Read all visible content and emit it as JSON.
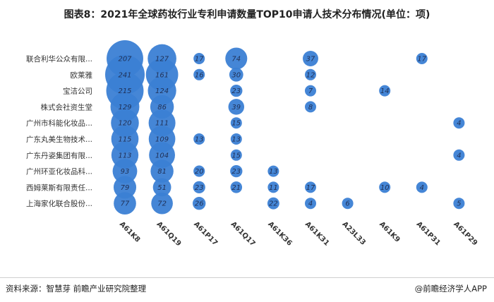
{
  "header": {
    "title": "图表8：2021年全球药妆行业专利申请数量TOP10申请人技术分布情况(单位：项)"
  },
  "footer": {
    "source": "资料来源：智慧芽 前瞻产业研究院整理",
    "brand": "@前瞻经济学人APP"
  },
  "chart_data": {
    "type": "bubble",
    "title": "图表8：2021年全球药妆行业专利申请数量TOP10申请人技术分布情况(单位：项)",
    "unit": "项",
    "x_categories": [
      "A61K8",
      "A61Q19",
      "A61P17",
      "A61Q17",
      "A61K36",
      "A61K31",
      "A23L33",
      "A61K9",
      "A61P31",
      "A61P29"
    ],
    "y_categories": [
      "联合利华公众有限...",
      "欧莱雅",
      "宝洁公司",
      "株式会社资生堂",
      "广州市科能化妆品...",
      "广东丸美生物技术...",
      "广东丹姿集团有限...",
      "广州环亚化妆品科...",
      "西姆莱斯有限责任...",
      "上海家化联合股份..."
    ],
    "bubble_color": "#3b7fd4",
    "points": [
      {
        "applicant": "联合利华公众有限...",
        "tech": "A61K8",
        "value": 207
      },
      {
        "applicant": "联合利华公众有限...",
        "tech": "A61Q19",
        "value": 127
      },
      {
        "applicant": "联合利华公众有限...",
        "tech": "A61P17",
        "value": 17
      },
      {
        "applicant": "联合利华公众有限...",
        "tech": "A61Q17",
        "value": 74
      },
      {
        "applicant": "联合利华公众有限...",
        "tech": "A61K31",
        "value": 37
      },
      {
        "applicant": "联合利华公众有限...",
        "tech": "A61P31",
        "value": 17
      },
      {
        "applicant": "欧莱雅",
        "tech": "A61K8",
        "value": 241
      },
      {
        "applicant": "欧莱雅",
        "tech": "A61Q19",
        "value": 161
      },
      {
        "applicant": "欧莱雅",
        "tech": "A61P17",
        "value": 16
      },
      {
        "applicant": "欧莱雅",
        "tech": "A61Q17",
        "value": 30
      },
      {
        "applicant": "欧莱雅",
        "tech": "A61K31",
        "value": 12
      },
      {
        "applicant": "宝洁公司",
        "tech": "A61K8",
        "value": 215
      },
      {
        "applicant": "宝洁公司",
        "tech": "A61Q19",
        "value": 124
      },
      {
        "applicant": "宝洁公司",
        "tech": "A61Q17",
        "value": 23
      },
      {
        "applicant": "宝洁公司",
        "tech": "A61K31",
        "value": 7
      },
      {
        "applicant": "宝洁公司",
        "tech": "A61K9",
        "value": 14
      },
      {
        "applicant": "株式会社资生堂",
        "tech": "A61K8",
        "value": 129
      },
      {
        "applicant": "株式会社资生堂",
        "tech": "A61Q19",
        "value": 86
      },
      {
        "applicant": "株式会社资生堂",
        "tech": "A61Q17",
        "value": 39
      },
      {
        "applicant": "株式会社资生堂",
        "tech": "A61K31",
        "value": 8
      },
      {
        "applicant": "广州市科能化妆品...",
        "tech": "A61K8",
        "value": 120
      },
      {
        "applicant": "广州市科能化妆品...",
        "tech": "A61Q19",
        "value": 111
      },
      {
        "applicant": "广州市科能化妆品...",
        "tech": "A61Q17",
        "value": 15
      },
      {
        "applicant": "广州市科能化妆品...",
        "tech": "A61P29",
        "value": 4
      },
      {
        "applicant": "广东丸美生物技术...",
        "tech": "A61K8",
        "value": 115
      },
      {
        "applicant": "广东丸美生物技术...",
        "tech": "A61Q19",
        "value": 109
      },
      {
        "applicant": "广东丸美生物技术...",
        "tech": "A61P17",
        "value": 13
      },
      {
        "applicant": "广东丸美生物技术...",
        "tech": "A61Q17",
        "value": 13
      },
      {
        "applicant": "广东丹姿集团有限...",
        "tech": "A61K8",
        "value": 113
      },
      {
        "applicant": "广东丹姿集团有限...",
        "tech": "A61Q19",
        "value": 104
      },
      {
        "applicant": "广东丹姿集团有限...",
        "tech": "A61Q17",
        "value": 15
      },
      {
        "applicant": "广东丹姿集团有限...",
        "tech": "A61P29",
        "value": 4
      },
      {
        "applicant": "广州环亚化妆品科...",
        "tech": "A61K8",
        "value": 93
      },
      {
        "applicant": "广州环亚化妆品科...",
        "tech": "A61Q19",
        "value": 81
      },
      {
        "applicant": "广州环亚化妆品科...",
        "tech": "A61P17",
        "value": 20
      },
      {
        "applicant": "广州环亚化妆品科...",
        "tech": "A61Q17",
        "value": 23
      },
      {
        "applicant": "广州环亚化妆品科...",
        "tech": "A61K36",
        "value": 13
      },
      {
        "applicant": "西姆莱斯有限责任...",
        "tech": "A61K8",
        "value": 79
      },
      {
        "applicant": "西姆莱斯有限责任...",
        "tech": "A61Q19",
        "value": 51
      },
      {
        "applicant": "西姆莱斯有限责任...",
        "tech": "A61P17",
        "value": 23
      },
      {
        "applicant": "西姆莱斯有限责任...",
        "tech": "A61Q17",
        "value": 21
      },
      {
        "applicant": "西姆莱斯有限责任...",
        "tech": "A61K36",
        "value": 11
      },
      {
        "applicant": "西姆莱斯有限责任...",
        "tech": "A61K31",
        "value": 17
      },
      {
        "applicant": "西姆莱斯有限责任...",
        "tech": "A61K9",
        "value": 10
      },
      {
        "applicant": "西姆莱斯有限责任...",
        "tech": "A61P31",
        "value": 4
      },
      {
        "applicant": "上海家化联合股份...",
        "tech": "A61K8",
        "value": 77
      },
      {
        "applicant": "上海家化联合股份...",
        "tech": "A61Q19",
        "value": 72
      },
      {
        "applicant": "上海家化联合股份...",
        "tech": "A61P17",
        "value": 26
      },
      {
        "applicant": "上海家化联合股份...",
        "tech": "A61K36",
        "value": 22
      },
      {
        "applicant": "上海家化联合股份...",
        "tech": "A61K31",
        "value": 4
      },
      {
        "applicant": "上海家化联合股份...",
        "tech": "A23L33",
        "value": 6
      },
      {
        "applicant": "上海家化联合股份...",
        "tech": "A61P29",
        "value": 5
      }
    ]
  }
}
